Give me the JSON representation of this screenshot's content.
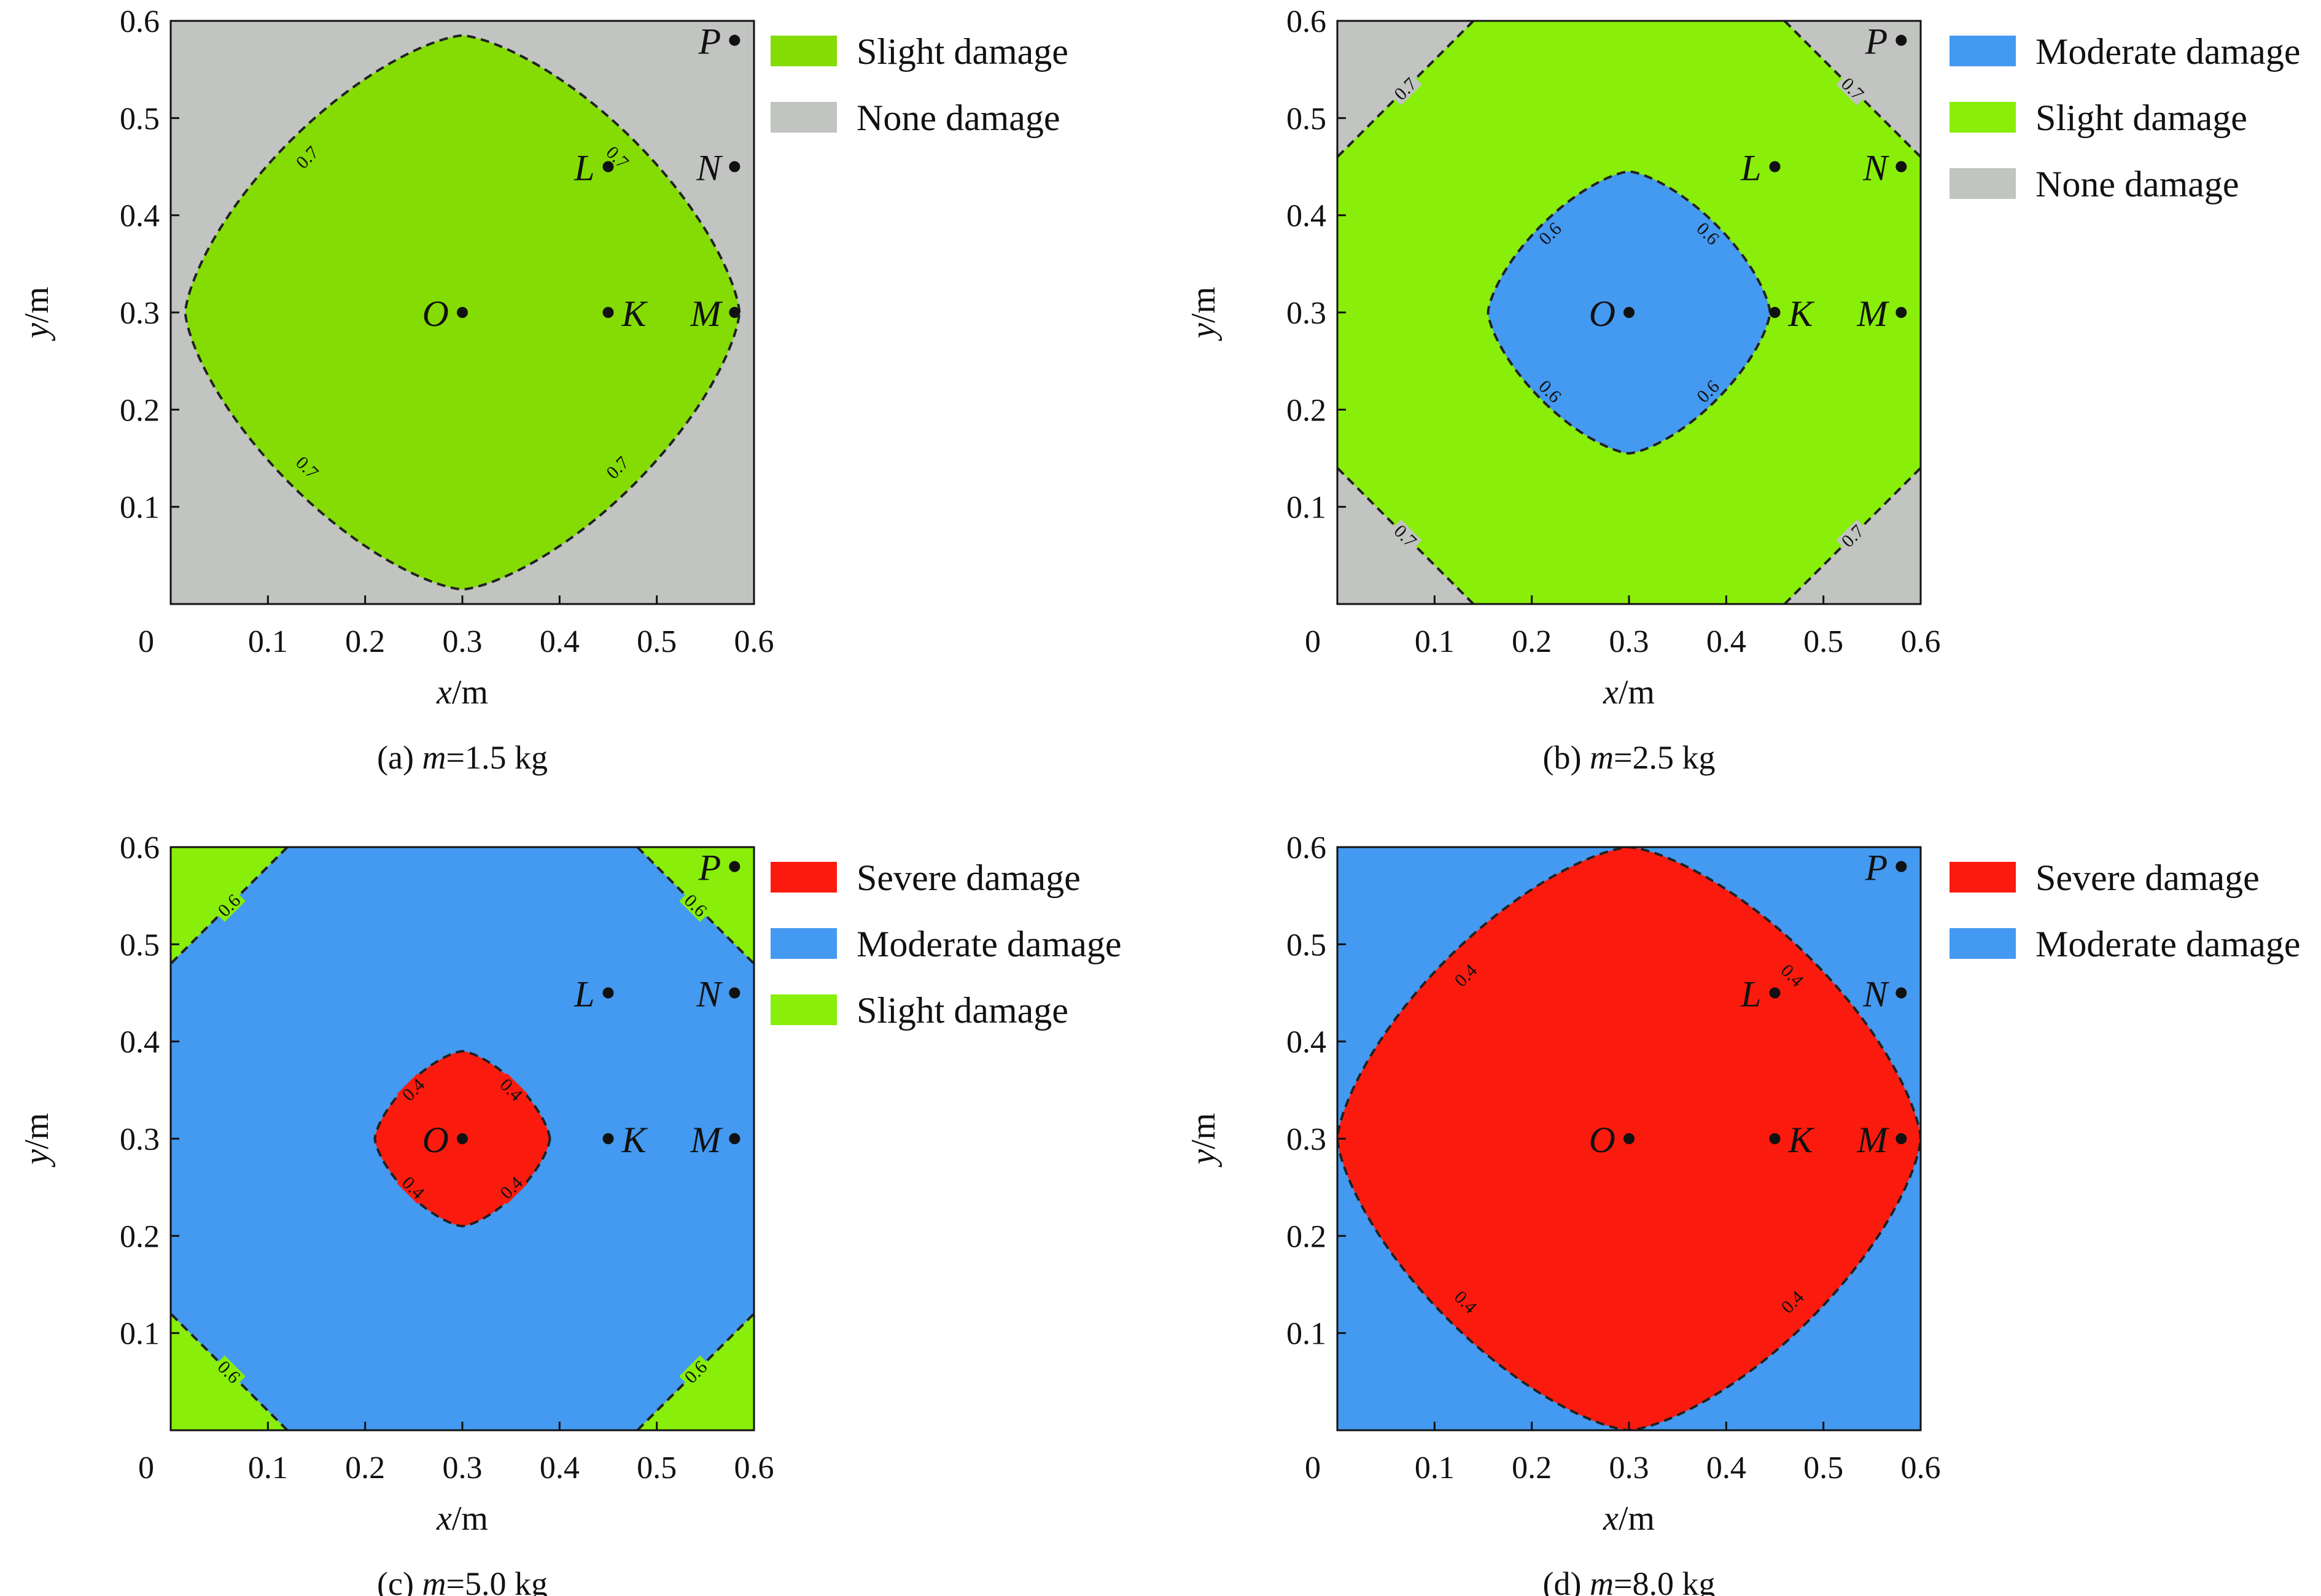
{
  "colors": {
    "severe": "#fa1b0e",
    "moderate": "#4499f0",
    "slight": "#88ee0a",
    "slight_a": "#84dc04",
    "none": "#c1c4c1"
  },
  "axes": {
    "xlabel_var": "x",
    "xlabel_unit": "/m",
    "ylabel_var": "y",
    "ylabel_unit": "/m",
    "xlim": [
      0,
      0.6
    ],
    "ylim": [
      0,
      0.6
    ],
    "xticks": [
      "0",
      "0.1",
      "0.2",
      "0.3",
      "0.4",
      "0.5",
      "0.6"
    ],
    "yticks": [
      "0.1",
      "0.2",
      "0.3",
      "0.4",
      "0.5",
      "0.6"
    ]
  },
  "points": [
    {
      "label": "O",
      "x": 0.3,
      "y": 0.3
    },
    {
      "label": "K",
      "x": 0.45,
      "y": 0.3
    },
    {
      "label": "M",
      "x": 0.58,
      "y": 0.3
    },
    {
      "label": "L",
      "x": 0.45,
      "y": 0.45
    },
    {
      "label": "N",
      "x": 0.58,
      "y": 0.45
    },
    {
      "label": "P",
      "x": 0.58,
      "y": 0.58
    }
  ],
  "chart_data": [
    {
      "type": "heatmap",
      "caption_prefix": "(a) ",
      "caption_var": "m",
      "caption_value": "=1.5 kg",
      "mass_kg": 1.5,
      "background": "none",
      "regions": [
        {
          "class": "slight_a",
          "shape": "central-diamond",
          "radius_m": 0.285,
          "contour_level": "0.7"
        }
      ],
      "legend": [
        {
          "label": "Slight damage",
          "color_key": "slight_a"
        },
        {
          "label": "None damage",
          "color_key": "none"
        }
      ]
    },
    {
      "type": "heatmap",
      "caption_prefix": "(b) ",
      "caption_var": "m",
      "caption_value": "=2.5 kg",
      "mass_kg": 2.5,
      "background": "slight",
      "regions": [
        {
          "class": "none",
          "shape": "corner-triangles",
          "offset_m": 0.14,
          "contour_level": "0.7"
        },
        {
          "class": "moderate",
          "shape": "central-diamond",
          "radius_m": 0.145,
          "contour_level": "0.6"
        }
      ],
      "legend": [
        {
          "label": "Moderate damage",
          "color_key": "moderate"
        },
        {
          "label": "Slight damage",
          "color_key": "slight"
        },
        {
          "label": "None damage",
          "color_key": "none"
        }
      ]
    },
    {
      "type": "heatmap",
      "caption_prefix": "(c) ",
      "caption_var": "m",
      "caption_value": "=5.0 kg",
      "mass_kg": 5.0,
      "background": "moderate",
      "regions": [
        {
          "class": "slight",
          "shape": "corner-triangles",
          "offset_m": 0.12,
          "contour_level": "0.6"
        },
        {
          "class": "severe",
          "shape": "central-diamond",
          "radius_m": 0.09,
          "contour_level": "0.4"
        }
      ],
      "legend": [
        {
          "label": "Severe damage",
          "color_key": "severe"
        },
        {
          "label": "Moderate damage",
          "color_key": "moderate"
        },
        {
          "label": "Slight damage",
          "color_key": "slight"
        }
      ]
    },
    {
      "type": "heatmap",
      "caption_prefix": "(d) ",
      "caption_var": "m",
      "caption_value": "=8.0 kg",
      "mass_kg": 8.0,
      "background": "moderate",
      "regions": [
        {
          "class": "severe",
          "shape": "central-diamond",
          "radius_m": 0.3,
          "contour_level": "0.4"
        }
      ],
      "legend": [
        {
          "label": "Severe damage",
          "color_key": "severe"
        },
        {
          "label": "Moderate damage",
          "color_key": "moderate"
        }
      ]
    }
  ]
}
